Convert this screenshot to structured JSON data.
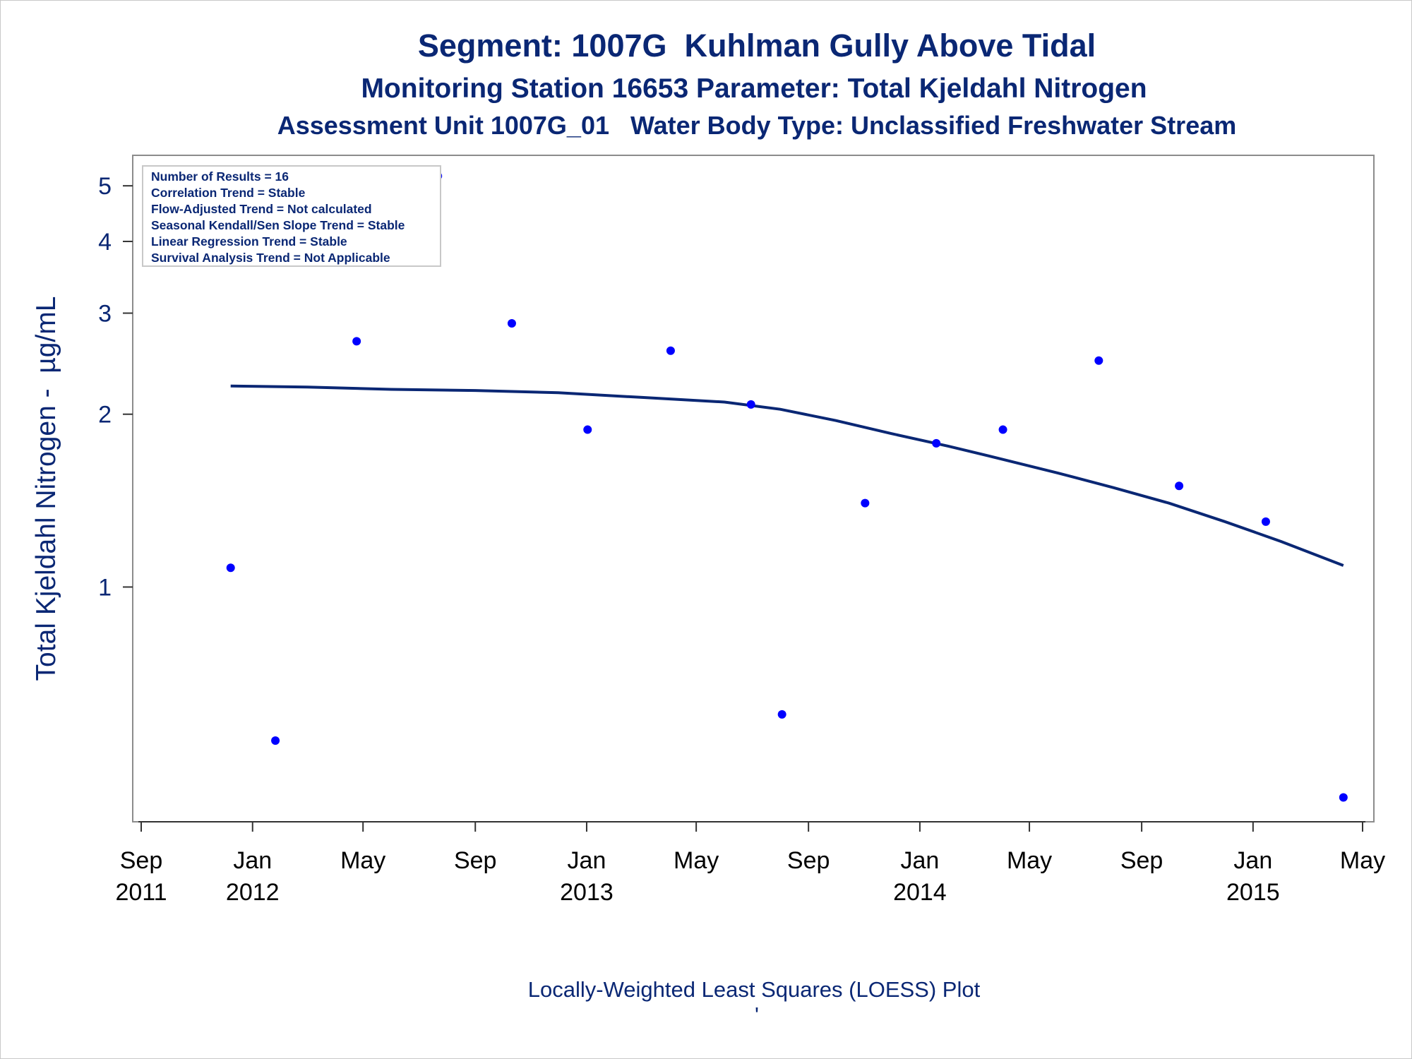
{
  "chart_data": {
    "type": "scatter",
    "title": "Segment: 1007G  Kuhlman Gully Above Tidal",
    "subtitle": "Monitoring Station 16653 Parameter: Total Kjeldahl Nitrogen",
    "subtitle2": "Assessment Unit 1007G_01   Water Body Type: Unclassified Freshwater Stream",
    "ylabel": "Total Kjeldahl Nitrogen -  µg/mL",
    "footnote": "Locally-Weighted Least Squares (LOESS) Plot",
    "footnote_mark": "'",
    "yscale": "log",
    "xlim": [
      "2011-09-01",
      "2015-05-01"
    ],
    "ylim": [
      0.4,
      5.4
    ],
    "y_ticks": [
      1,
      2,
      3,
      4,
      5
    ],
    "x_ticks": [
      {
        "date": "2011-09-01",
        "label": "Sep",
        "year": "2011"
      },
      {
        "date": "2012-01-01",
        "label": "Jan",
        "year": "2012"
      },
      {
        "date": "2012-05-01",
        "label": "May",
        "year": ""
      },
      {
        "date": "2012-09-01",
        "label": "Sep",
        "year": ""
      },
      {
        "date": "2013-01-01",
        "label": "Jan",
        "year": "2013"
      },
      {
        "date": "2013-05-01",
        "label": "May",
        "year": ""
      },
      {
        "date": "2013-09-01",
        "label": "Sep",
        "year": ""
      },
      {
        "date": "2014-01-01",
        "label": "Jan",
        "year": "2014"
      },
      {
        "date": "2014-05-01",
        "label": "May",
        "year": ""
      },
      {
        "date": "2014-09-01",
        "label": "Sep",
        "year": ""
      },
      {
        "date": "2015-01-01",
        "label": "Jan",
        "year": "2015"
      },
      {
        "date": "2015-05-01",
        "label": "May",
        "year": ""
      }
    ],
    "points": [
      {
        "x": "2011-12-08",
        "y": 1.08
      },
      {
        "x": "2012-01-26",
        "y": 0.54
      },
      {
        "x": "2012-04-24",
        "y": 2.68
      },
      {
        "x": "2012-07-22",
        "y": 5.2
      },
      {
        "x": "2012-10-11",
        "y": 2.88
      },
      {
        "x": "2013-01-02",
        "y": 1.88
      },
      {
        "x": "2013-04-03",
        "y": 2.58
      },
      {
        "x": "2013-06-30",
        "y": 2.08
      },
      {
        "x": "2013-08-03",
        "y": 0.6
      },
      {
        "x": "2013-11-02",
        "y": 1.4
      },
      {
        "x": "2014-01-19",
        "y": 1.78
      },
      {
        "x": "2014-04-02",
        "y": 1.88
      },
      {
        "x": "2014-07-16",
        "y": 2.48
      },
      {
        "x": "2014-10-12",
        "y": 1.5
      },
      {
        "x": "2015-01-15",
        "y": 1.3
      },
      {
        "x": "2015-04-10",
        "y": 0.43
      }
    ],
    "loess": [
      {
        "x": "2011-12-08",
        "y": 2.24
      },
      {
        "x": "2012-03-01",
        "y": 2.23
      },
      {
        "x": "2012-06-01",
        "y": 2.21
      },
      {
        "x": "2012-09-01",
        "y": 2.2
      },
      {
        "x": "2012-12-01",
        "y": 2.18
      },
      {
        "x": "2013-03-01",
        "y": 2.14
      },
      {
        "x": "2013-06-01",
        "y": 2.1
      },
      {
        "x": "2013-08-01",
        "y": 2.04
      },
      {
        "x": "2013-10-01",
        "y": 1.95
      },
      {
        "x": "2013-12-01",
        "y": 1.85
      },
      {
        "x": "2014-02-01",
        "y": 1.76
      },
      {
        "x": "2014-04-01",
        "y": 1.67
      },
      {
        "x": "2014-06-01",
        "y": 1.58
      },
      {
        "x": "2014-08-01",
        "y": 1.49
      },
      {
        "x": "2014-10-01",
        "y": 1.4
      },
      {
        "x": "2014-12-01",
        "y": 1.3
      },
      {
        "x": "2015-02-01",
        "y": 1.2
      },
      {
        "x": "2015-04-10",
        "y": 1.09
      }
    ],
    "colors": {
      "points": "#0000ff",
      "line": "#0a2774",
      "text": "#0a2774"
    },
    "stats_box": [
      "Number of Results = 16",
      "Correlation Trend = Stable",
      "Flow-Adjusted Trend = Not calculated",
      "Seasonal Kendall/Sen Slope Trend = Stable",
      "Linear Regression Trend = Stable",
      "Survival Analysis Trend = Not Applicable"
    ]
  }
}
